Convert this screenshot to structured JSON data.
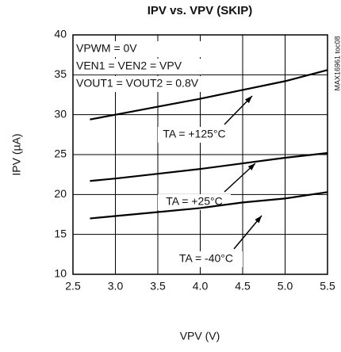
{
  "chart_data": {
    "type": "line",
    "title": "IPV vs. VPV (SKIP)",
    "x_label": "VPV (V)",
    "y_label": "IPV (µA)",
    "annotations": [
      "VPWM = 0V",
      "VEN1 = VEN2 = VPV",
      "VOUT1 = VOUT2 = 0.8V"
    ],
    "side_note": "MAX16961 toc08",
    "x": [
      2.7,
      3.0,
      3.5,
      4.0,
      4.5,
      5.0,
      5.5
    ],
    "series": [
      {
        "name": "TA = +125°C",
        "color": "#000000",
        "values": [
          29.4,
          30.0,
          31.0,
          32.0,
          33.1,
          34.2,
          35.6
        ]
      },
      {
        "name": "TA = +25°C",
        "color": "#000000",
        "values": [
          21.7,
          22.0,
          22.6,
          23.2,
          23.9,
          24.6,
          25.2
        ]
      },
      {
        "name": "TA = -40°C",
        "color": "#000000",
        "values": [
          17.0,
          17.3,
          17.8,
          18.3,
          19.0,
          19.5,
          20.3
        ]
      }
    ],
    "xlim": [
      2.5,
      5.5
    ],
    "xticks": [
      {
        "value": 2.5,
        "label": "2.5"
      },
      {
        "value": 3.0,
        "label": "3.0"
      },
      {
        "value": 3.5,
        "label": "3.5"
      },
      {
        "value": 4.0,
        "label": "4.0"
      },
      {
        "value": 4.5,
        "label": "4.5"
      },
      {
        "value": 5.0,
        "label": "5.0"
      },
      {
        "value": 5.5,
        "label": "5.5"
      }
    ],
    "ylim": [
      10,
      40
    ],
    "yticks": [
      10,
      15,
      20,
      25,
      30,
      35,
      40
    ],
    "grid": true
  }
}
